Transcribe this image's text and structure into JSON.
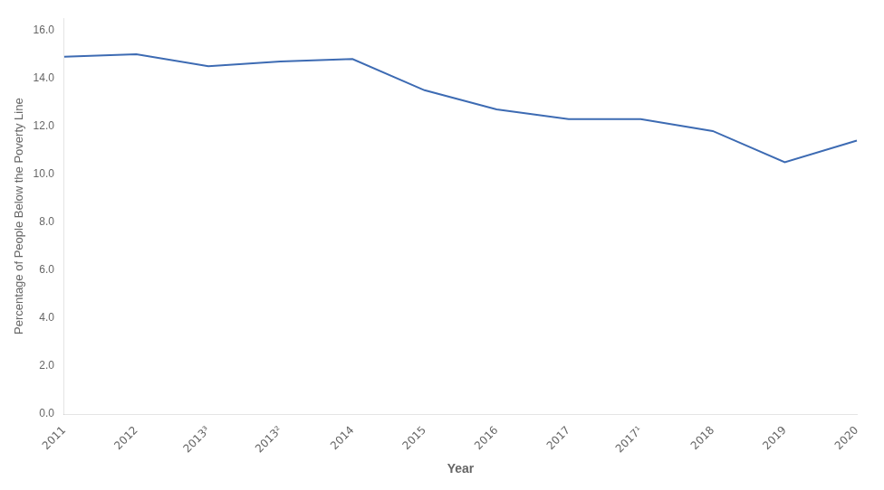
{
  "chart_data": {
    "type": "line",
    "xlabel": "Year",
    "ylabel": "Percentage of People Below the Poverty Line",
    "categories": [
      "2011",
      "2012",
      "2013³",
      "2013²",
      "2014",
      "2015",
      "2016",
      "2017",
      "2017¹",
      "2018",
      "2019",
      "2020"
    ],
    "values": [
      14.9,
      15.0,
      14.5,
      14.7,
      14.8,
      13.5,
      12.7,
      12.3,
      12.3,
      11.8,
      10.5,
      11.4
    ],
    "color": "#3d6bb3",
    "ylim": [
      0,
      16.5
    ],
    "yticks": [
      {
        "value": 0,
        "label": "0.0"
      },
      {
        "value": 2,
        "label": "2.0"
      },
      {
        "value": 4,
        "label": "4.0"
      },
      {
        "value": 6,
        "label": "6.0"
      },
      {
        "value": 8,
        "label": "8.0"
      },
      {
        "value": 10,
        "label": "10.0"
      },
      {
        "value": 12,
        "label": "12.0"
      },
      {
        "value": 14,
        "label": "14.0"
      },
      {
        "value": 16,
        "label": "16.0"
      }
    ],
    "grid": false
  }
}
